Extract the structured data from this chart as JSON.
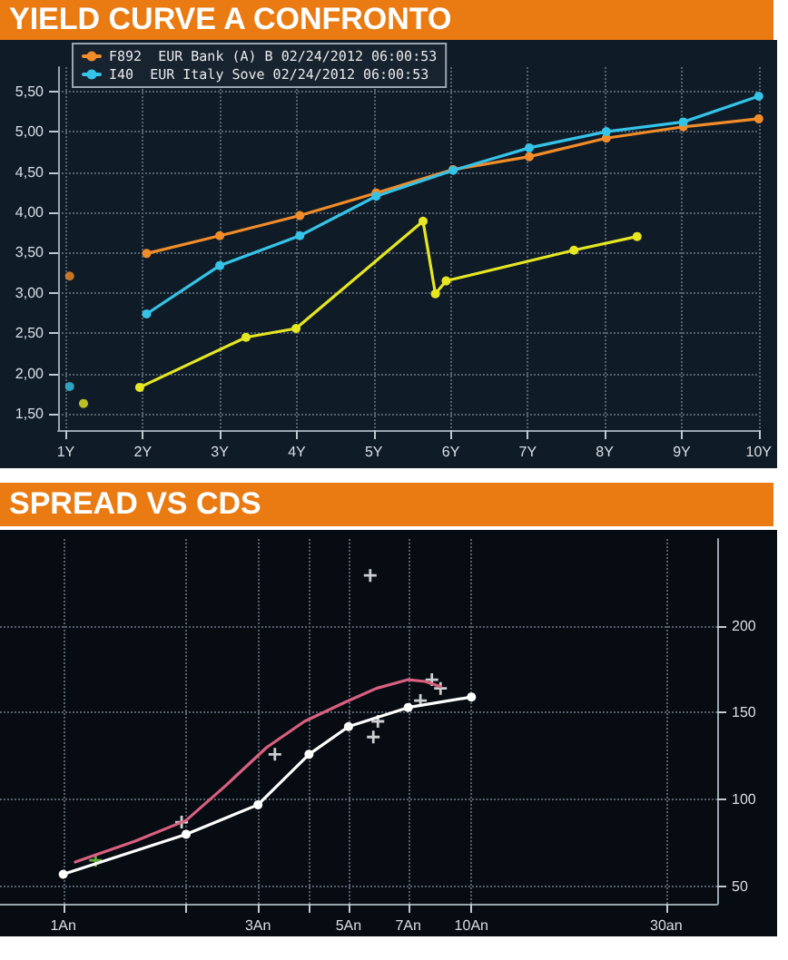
{
  "chart_data": [
    {
      "type": "line",
      "title": "YIELD CURVE A CONFRONTO",
      "grid": true,
      "legend": "top left",
      "marker": "circle",
      "xlim": [
        0.9,
        10
      ],
      "xticks": [
        {
          "value": 1,
          "label": "1Y"
        },
        {
          "value": 2,
          "label": "2Y"
        },
        {
          "value": 3,
          "label": "3Y"
        },
        {
          "value": 4,
          "label": "4Y"
        },
        {
          "value": 5,
          "label": "5Y"
        },
        {
          "value": 6,
          "label": "6Y"
        },
        {
          "value": 7,
          "label": "7Y"
        },
        {
          "value": 8,
          "label": "8Y"
        },
        {
          "value": 9,
          "label": "9Y"
        },
        {
          "value": 10,
          "label": "10Y"
        }
      ],
      "ylim": [
        1.3,
        5.8
      ],
      "yticks": [
        {
          "value": 1.5,
          "label": "1,50"
        },
        {
          "value": 2,
          "label": "2,00"
        },
        {
          "value": 2.5,
          "label": "2,50"
        },
        {
          "value": 3,
          "label": "3,00"
        },
        {
          "value": 3.5,
          "label": "3,50"
        },
        {
          "value": 4,
          "label": "4,00"
        },
        {
          "value": 4.5,
          "label": "4,50"
        },
        {
          "value": 5,
          "label": "5,00"
        },
        {
          "value": 5.5,
          "label": "5,50"
        }
      ],
      "series": [
        {
          "name": "F892  EUR Bank (A) B 02/24/2012 06:00:53",
          "color": "#f28c28",
          "x": [
            2.05,
            3.0,
            4.04,
            5.03,
            6.03,
            7.02,
            8.02,
            9.02,
            10.0
          ],
          "values": [
            3.49,
            3.71,
            3.96,
            4.24,
            4.53,
            4.69,
            4.92,
            5.06,
            5.16
          ]
        },
        {
          "color": "#e6e621",
          "x": [
            1.96,
            3.34,
            3.99,
            5.64,
            5.8,
            5.94,
            7.6,
            8.42
          ],
          "values": [
            1.83,
            2.45,
            2.56,
            3.89,
            2.99,
            3.15,
            3.53,
            3.7
          ]
        },
        {
          "name": "I40  EUR Italy Sove 02/24/2012 06:00:53",
          "color": "#35c3e8",
          "x": [
            2.05,
            3.0,
            4.04,
            5.03,
            6.03,
            7.02,
            8.02,
            9.02,
            10.0
          ],
          "values": [
            2.74,
            3.34,
            3.71,
            4.2,
            4.52,
            4.8,
            5.0,
            5.12,
            5.44
          ]
        },
        {
          "type": "scatter",
          "color": "#f28c28",
          "x": [
            1.05
          ],
          "values": [
            3.21
          ]
        },
        {
          "type": "scatter",
          "color": "#e6e621",
          "x": [
            1.23
          ],
          "values": [
            1.63
          ]
        },
        {
          "type": "scatter",
          "color": "#35c3e8",
          "x": [
            1.05
          ],
          "values": [
            1.84
          ]
        }
      ]
    },
    {
      "type": "line",
      "title": "SPREAD VS CDS",
      "grid": true,
      "log": "x",
      "xlim": [
        0.7,
        40
      ],
      "xticks": [
        {
          "value": 1,
          "label": "1An"
        },
        {
          "value": 2,
          "label": null
        },
        {
          "value": 3,
          "label": "3An"
        },
        {
          "value": 4,
          "label": null
        },
        {
          "value": 5,
          "label": "5An"
        },
        {
          "value": 7,
          "label": "7An"
        },
        {
          "value": 10,
          "label": "10An"
        },
        {
          "value": 30,
          "label": "30an"
        }
      ],
      "ylim": [
        40,
        250
      ],
      "yticks": [
        50,
        100,
        150,
        200
      ],
      "series": [
        {
          "color": "#d9607f",
          "marker": "none",
          "x": [
            1.07,
            1.5,
            2.0,
            2.5,
            3.15,
            3.9,
            4.9,
            5.85,
            7.0,
            7.7,
            8.4
          ],
          "values": [
            64,
            76,
            88,
            108,
            130,
            145,
            156,
            164,
            169,
            168,
            165
          ]
        },
        {
          "color": "#ffffff",
          "marker": "circle",
          "x": [
            1,
            2,
            3,
            4,
            5,
            7,
            10
          ],
          "values": [
            57,
            80,
            97,
            126,
            142,
            153,
            159
          ]
        },
        {
          "type": "scatter",
          "marker": "cross",
          "color": "#ffffff",
          "x": [
            5.65,
            3.3,
            1.95,
            5.75,
            5.9,
            7.5,
            8.0,
            8.4
          ],
          "values": [
            229,
            126,
            87,
            136,
            145,
            157,
            169,
            164
          ]
        },
        {
          "type": "scatter",
          "marker": "cross",
          "color": "#7cd94a",
          "x": [
            1.2
          ],
          "values": [
            65
          ]
        }
      ]
    }
  ]
}
